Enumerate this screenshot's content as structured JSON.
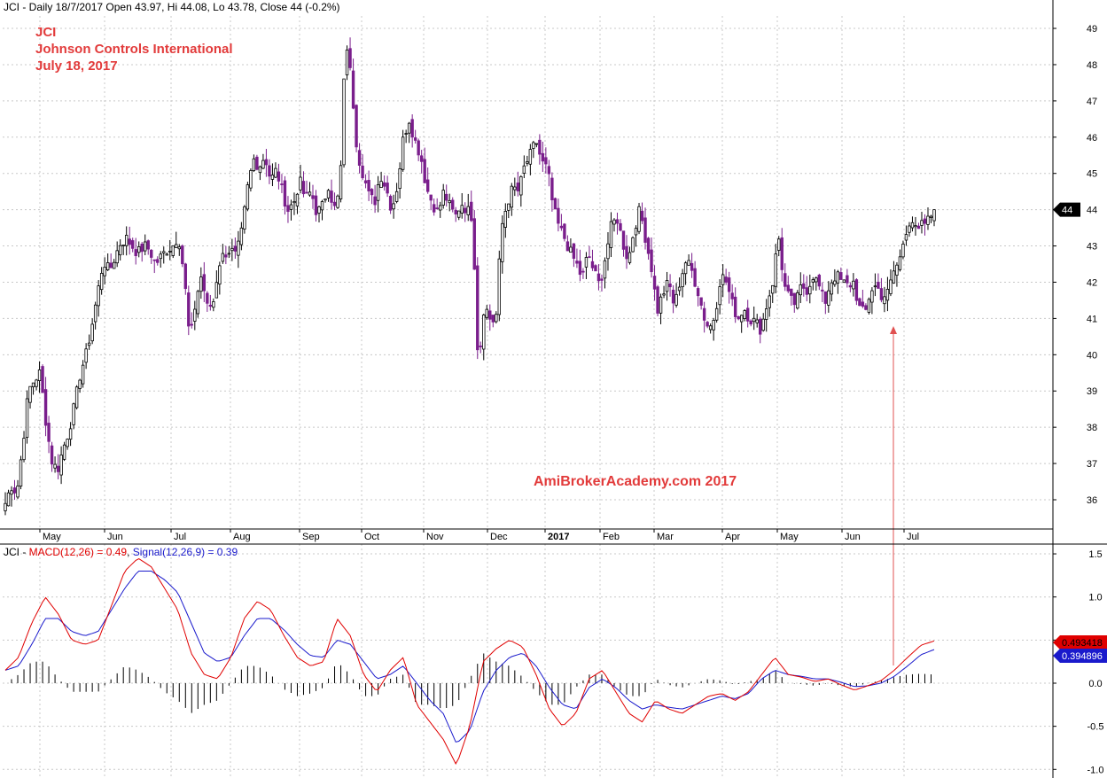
{
  "header": {
    "symbol": "JCI",
    "info": "JCI - Daily 18/7/2017 Open 43.97, Hi 44.08, Lo 43.78, Close 44 (-0.2%)"
  },
  "title_block": {
    "line1": "JCI",
    "line2": "Johnson Controls International",
    "line3": "July 18, 2017"
  },
  "watermark": "AmiBrokerAcademy.com 2017",
  "macd_header": {
    "prefix": "JCI - ",
    "macd_label": "MACD(12,26) = 0.49",
    "separator": ", ",
    "signal_label": "Signal(12,26,9) = 0.39"
  },
  "colors": {
    "up_candle": "#000000",
    "down_candle": "#7a1e8c",
    "macd_line": "#e00000",
    "signal_line": "#1a1acc",
    "grid": "#c8c8c8",
    "annotation_arrow": "#e05050",
    "title_text": "#e23b3b"
  },
  "chart_data": [
    {
      "type": "candlestick",
      "title": "JCI - Daily",
      "y_ticks": [
        36,
        37,
        38,
        39,
        40,
        41,
        42,
        43,
        44,
        45,
        46,
        47,
        48,
        49
      ],
      "ylim": [
        35.2,
        50.0
      ],
      "last_price_label": "44",
      "last_close": 44,
      "x_month_labels": [
        "May",
        "Jun",
        "Jul",
        "Aug",
        "Sep",
        "Oct",
        "Nov",
        "Dec",
        "2017",
        "Feb",
        "Mar",
        "Apr",
        "May",
        "Jun",
        "Jul"
      ],
      "close_path": [
        35.9,
        36.4,
        36.2,
        37.5,
        39.0,
        39.3,
        39.5,
        38.2,
        37.1,
        36.8,
        37.4,
        37.9,
        38.6,
        39.5,
        40.0,
        40.8,
        41.7,
        42.6,
        42.3,
        42.7,
        43.1,
        43.2,
        43.0,
        42.8,
        43.0,
        42.9,
        42.5,
        42.7,
        42.9,
        43.0,
        43.3,
        42.2,
        40.3,
        41.5,
        42.2,
        41.3,
        41.4,
        42.5,
        42.8,
        42.9,
        42.7,
        43.4,
        44.6,
        45.4,
        45.2,
        45.5,
        44.8,
        45.1,
        44.5,
        44.0,
        44.2,
        44.8,
        44.3,
        44.5,
        43.9,
        44.1,
        44.7,
        44.0,
        44.5,
        48.8,
        47.5,
        45.6,
        45.0,
        44.4,
        44.2,
        45.0,
        44.6,
        44.0,
        44.7,
        46.0,
        46.5,
        45.9,
        45.5,
        44.6,
        44.2,
        43.9,
        44.5,
        44.1,
        43.8,
        44.2,
        44.0,
        43.8,
        39.6,
        41.4,
        41.0,
        40.9,
        43.5,
        44.2,
        44.6,
        44.5,
        45.2,
        45.5,
        45.9,
        45.3,
        45.1,
        44.0,
        43.5,
        43.2,
        42.8,
        42.5,
        42.1,
        42.8,
        42.3,
        41.9,
        42.7,
        43.5,
        43.8,
        43.1,
        42.6,
        43.5,
        44.0,
        43.2,
        42.4,
        41.2,
        41.7,
        42.0,
        41.3,
        42.1,
        42.6,
        42.3,
        41.8,
        41.1,
        40.7,
        41.1,
        42.2,
        42.0,
        41.4,
        41.0,
        41.3,
        41.0,
        40.9,
        40.7,
        41.4,
        42.0,
        43.3,
        41.9,
        41.5,
        41.4,
        41.9,
        41.8,
        42.2,
        41.9,
        41.4,
        42.0,
        42.2,
        42.0,
        41.9,
        42.0,
        41.3,
        41.1,
        41.8,
        41.9,
        41.6,
        41.7,
        42.3,
        42.6,
        43.4,
        43.8,
        43.3,
        43.6,
        43.7,
        44.0
      ]
    },
    {
      "type": "line",
      "title": "MACD(12,26), Signal(12,26,9)",
      "y_ticks": [
        -1.0,
        -0.5,
        0.0,
        0.5,
        1.0,
        1.5
      ],
      "ylim": [
        -1.08,
        1.62
      ],
      "series": [
        {
          "name": "MACD(12,26)",
          "last_value_label": "0.493418",
          "values": [
            0.15,
            0.3,
            0.7,
            1.0,
            0.8,
            0.5,
            0.45,
            0.5,
            0.9,
            1.3,
            1.45,
            1.35,
            1.1,
            0.85,
            0.35,
            0.1,
            0.05,
            0.3,
            0.75,
            0.95,
            0.85,
            0.55,
            0.3,
            0.2,
            0.25,
            0.75,
            0.55,
            0.1,
            -0.1,
            0.15,
            0.3,
            -0.25,
            -0.45,
            -0.65,
            -0.95,
            -0.5,
            0.25,
            0.4,
            0.5,
            0.42,
            0.1,
            -0.3,
            -0.5,
            -0.35,
            0.05,
            0.15,
            -0.1,
            -0.35,
            -0.45,
            -0.2,
            -0.3,
            -0.35,
            -0.25,
            -0.15,
            -0.12,
            -0.2,
            -0.1,
            0.1,
            0.3,
            0.1,
            0.07,
            0.02,
            0.05,
            -0.02,
            -0.08,
            -0.03,
            0.03,
            0.15,
            0.3,
            0.44,
            0.49
          ]
        },
        {
          "name": "Signal(12,26,9)",
          "last_value_label": "0.394896",
          "values": [
            0.15,
            0.2,
            0.45,
            0.75,
            0.75,
            0.6,
            0.55,
            0.6,
            0.85,
            1.1,
            1.3,
            1.3,
            1.2,
            1.05,
            0.7,
            0.35,
            0.25,
            0.3,
            0.55,
            0.75,
            0.75,
            0.62,
            0.45,
            0.32,
            0.3,
            0.5,
            0.45,
            0.25,
            0.05,
            0.1,
            0.2,
            0.0,
            -0.2,
            -0.35,
            -0.7,
            -0.55,
            -0.1,
            0.15,
            0.3,
            0.35,
            0.2,
            -0.05,
            -0.25,
            -0.3,
            -0.05,
            0.05,
            -0.05,
            -0.2,
            -0.3,
            -0.25,
            -0.28,
            -0.3,
            -0.25,
            -0.2,
            -0.15,
            -0.18,
            -0.12,
            0.05,
            0.15,
            0.1,
            0.08,
            0.05,
            0.05,
            0.01,
            -0.04,
            -0.03,
            0.0,
            0.08,
            0.2,
            0.33,
            0.39
          ]
        }
      ]
    }
  ]
}
